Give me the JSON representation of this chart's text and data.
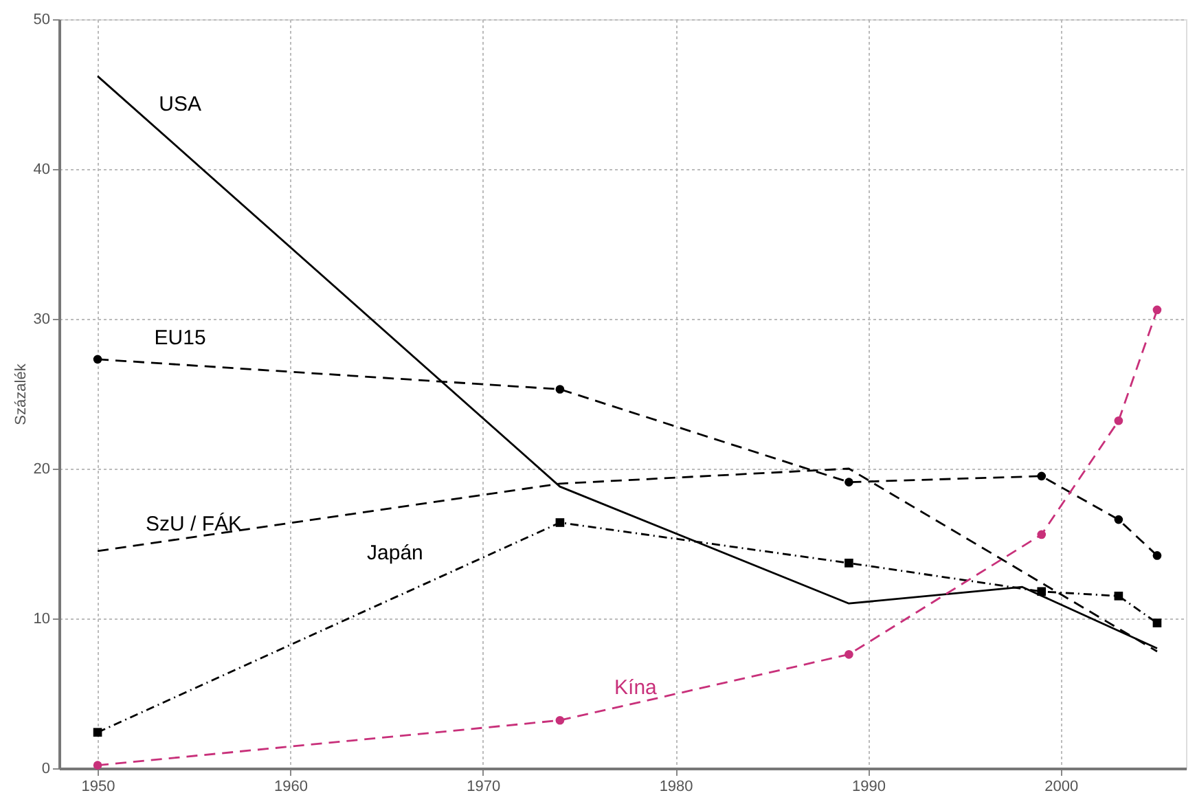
{
  "chart_data": {
    "type": "line",
    "ylabel": "Százalék",
    "xlim": [
      1948,
      2006.5
    ],
    "xticks": [
      1950,
      1960,
      1970,
      1980,
      1990,
      2000
    ],
    "ylim": [
      0,
      50
    ],
    "yticks": [
      0,
      10,
      20,
      30,
      40,
      50
    ],
    "grid": true,
    "series": [
      {
        "name": "USA",
        "color": "#000000",
        "line_style": "solid",
        "marker": "none",
        "x": [
          1950,
          1974,
          1989,
          1998,
          2005
        ],
        "values": [
          46.2,
          18.8,
          11.0,
          12.1,
          8.0
        ]
      },
      {
        "name": "EU15",
        "color": "#000000",
        "line_style": "dashed",
        "marker": "circle",
        "x": [
          1950,
          1974,
          1989,
          1999,
          2003,
          2005
        ],
        "values": [
          27.3,
          25.3,
          19.1,
          19.5,
          16.6,
          14.2
        ]
      },
      {
        "name": "SzU / FÁK",
        "color": "#000000",
        "line_style": "dashed",
        "marker": "none",
        "x": [
          1950,
          1974,
          1989,
          2005
        ],
        "values": [
          14.5,
          19.0,
          20.0,
          7.8
        ]
      },
      {
        "name": "Japán",
        "color": "#000000",
        "line_style": "dotted",
        "marker": "square",
        "x": [
          1950,
          1974,
          1989,
          1999,
          2003,
          2005
        ],
        "values": [
          2.4,
          16.4,
          13.7,
          11.8,
          11.5,
          9.7
        ]
      },
      {
        "name": "Kína",
        "color": "#c8307a",
        "line_style": "dashed",
        "marker": "circle",
        "x": [
          1950,
          1974,
          1989,
          1999,
          2003,
          2005
        ],
        "values": [
          0.2,
          3.2,
          7.6,
          15.6,
          23.2,
          30.6
        ]
      }
    ]
  }
}
